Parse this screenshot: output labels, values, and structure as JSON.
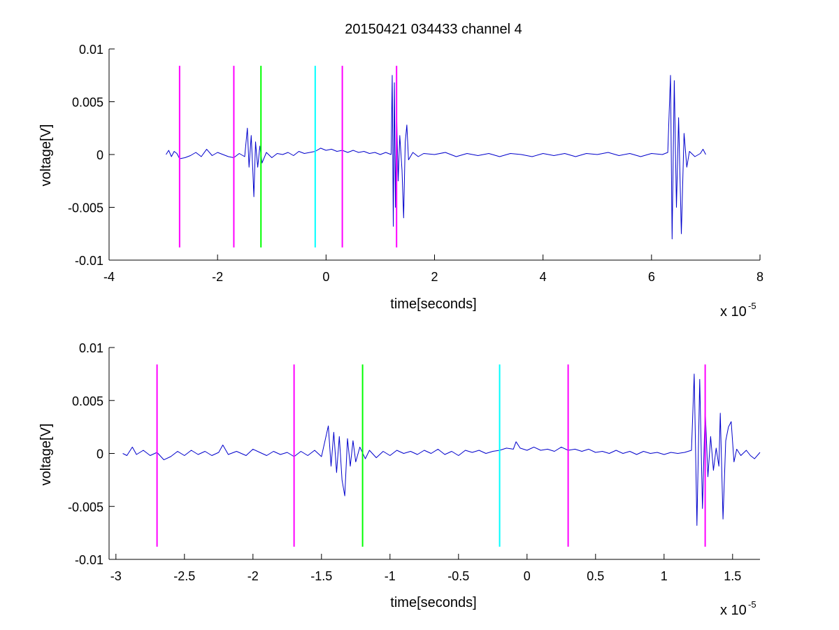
{
  "chart_data": [
    {
      "type": "line",
      "title": "20150421 034433 channel 4",
      "xlabel": "time[seconds]",
      "ylabel": "voltage[V]",
      "x_multiplier_label": "x 10",
      "x_multiplier_exponent": "-5",
      "xlim": [
        -4,
        8
      ],
      "ylim": [
        -0.01,
        0.01
      ],
      "x_ticks": [
        "-4",
        "-2",
        "0",
        "2",
        "4",
        "6",
        "8"
      ],
      "y_ticks": [
        "-0.01",
        "-0.005",
        "0",
        "0.005",
        "0.01"
      ],
      "grid": false,
      "series": [
        {
          "color": "#0000cc",
          "points": [
            [
              -2.95,
              0.0
            ],
            [
              -2.9,
              0.0004
            ],
            [
              -2.85,
              -0.0002
            ],
            [
              -2.8,
              0.0003
            ],
            [
              -2.75,
              0.0001
            ],
            [
              -2.7,
              -0.0004
            ],
            [
              -2.6,
              -0.0003
            ],
            [
              -2.5,
              -0.0001
            ],
            [
              -2.4,
              0.0002
            ],
            [
              -2.3,
              -0.0002
            ],
            [
              -2.2,
              0.0005
            ],
            [
              -2.1,
              -0.0001
            ],
            [
              -2.0,
              0.0002
            ],
            [
              -1.9,
              0.0
            ],
            [
              -1.8,
              -0.0002
            ],
            [
              -1.7,
              -0.0003
            ],
            [
              -1.6,
              0.0001
            ],
            [
              -1.5,
              -0.0002
            ],
            [
              -1.45,
              0.0025
            ],
            [
              -1.42,
              -0.0012
            ],
            [
              -1.38,
              0.0018
            ],
            [
              -1.35,
              -0.0015
            ],
            [
              -1.33,
              -0.004
            ],
            [
              -1.3,
              0.0012
            ],
            [
              -1.26,
              -0.0012
            ],
            [
              -1.22,
              0.0008
            ],
            [
              -1.18,
              -0.0008
            ],
            [
              -1.1,
              0.0002
            ],
            [
              -1.0,
              -0.0003
            ],
            [
              -0.9,
              0.0001
            ],
            [
              -0.8,
              0.0
            ],
            [
              -0.7,
              0.0002
            ],
            [
              -0.6,
              -0.0001
            ],
            [
              -0.5,
              0.0003
            ],
            [
              -0.4,
              0.0001
            ],
            [
              -0.3,
              0.0002
            ],
            [
              -0.2,
              0.0003
            ],
            [
              -0.1,
              0.0006
            ],
            [
              0.0,
              0.0004
            ],
            [
              0.1,
              0.0005
            ],
            [
              0.2,
              0.0003
            ],
            [
              0.3,
              0.0004
            ],
            [
              0.4,
              0.0002
            ],
            [
              0.5,
              0.0004
            ],
            [
              0.6,
              0.0002
            ],
            [
              0.7,
              0.0003
            ],
            [
              0.8,
              0.0001
            ],
            [
              0.9,
              0.0002
            ],
            [
              1.0,
              0.0
            ],
            [
              1.1,
              0.0002
            ],
            [
              1.2,
              0.0
            ],
            [
              1.22,
              0.0075
            ],
            [
              1.24,
              -0.0068
            ],
            [
              1.26,
              0.0068
            ],
            [
              1.28,
              -0.005
            ],
            [
              1.3,
              0.004
            ],
            [
              1.33,
              -0.0025
            ],
            [
              1.36,
              0.0018
            ],
            [
              1.4,
              -0.0015
            ],
            [
              1.43,
              -0.006
            ],
            [
              1.46,
              0.0012
            ],
            [
              1.49,
              0.0028
            ],
            [
              1.52,
              -0.0005
            ],
            [
              1.6,
              0.0002
            ],
            [
              1.7,
              -0.0002
            ],
            [
              1.8,
              0.0001
            ],
            [
              2.0,
              0.0
            ],
            [
              2.2,
              0.0002
            ],
            [
              2.4,
              -0.0002
            ],
            [
              2.6,
              0.0001
            ],
            [
              2.8,
              -0.0001
            ],
            [
              3.0,
              0.0001
            ],
            [
              3.2,
              -0.0002
            ],
            [
              3.4,
              0.0001
            ],
            [
              3.6,
              0.0
            ],
            [
              3.8,
              -0.0002
            ],
            [
              4.0,
              0.0001
            ],
            [
              4.2,
              -0.0001
            ],
            [
              4.4,
              0.0001
            ],
            [
              4.6,
              -0.0002
            ],
            [
              4.8,
              0.0001
            ],
            [
              5.0,
              0.0
            ],
            [
              5.2,
              0.0002
            ],
            [
              5.4,
              -0.0001
            ],
            [
              5.6,
              0.0001
            ],
            [
              5.8,
              -0.0002
            ],
            [
              6.0,
              0.0001
            ],
            [
              6.2,
              0.0
            ],
            [
              6.3,
              0.0002
            ],
            [
              6.35,
              0.0075
            ],
            [
              6.38,
              -0.008
            ],
            [
              6.42,
              0.007
            ],
            [
              6.46,
              -0.005
            ],
            [
              6.5,
              0.0035
            ],
            [
              6.55,
              -0.0075
            ],
            [
              6.6,
              0.002
            ],
            [
              6.65,
              -0.0012
            ],
            [
              6.7,
              0.0003
            ],
            [
              6.8,
              -0.0002
            ],
            [
              6.9,
              0.0001
            ],
            [
              6.95,
              0.0005
            ],
            [
              7.0,
              0.0
            ]
          ]
        }
      ],
      "markers": [
        {
          "x": -2.7,
          "color": "#ff00ff"
        },
        {
          "x": -1.7,
          "color": "#ff00ff"
        },
        {
          "x": -1.2,
          "color": "#00ff00"
        },
        {
          "x": -0.2,
          "color": "#00ffff"
        },
        {
          "x": 0.3,
          "color": "#ff00ff"
        },
        {
          "x": 1.3,
          "color": "#ff00ff"
        }
      ],
      "marker_range": [
        -0.0088,
        0.0084
      ]
    },
    {
      "type": "line",
      "title": "",
      "xlabel": "time[seconds]",
      "ylabel": "voltage[V]",
      "x_multiplier_label": "x 10",
      "x_multiplier_exponent": "-5",
      "xlim": [
        -3.05,
        1.7
      ],
      "ylim": [
        -0.01,
        0.01
      ],
      "x_ticks": [
        "-3",
        "-2.5",
        "-2",
        "-1.5",
        "-1",
        "-0.5",
        "0",
        "0.5",
        "1",
        "1.5"
      ],
      "y_ticks": [
        "-0.01",
        "-0.005",
        "0",
        "0.005",
        "0.01"
      ],
      "grid": false,
      "series": [
        {
          "color": "#0000cc",
          "points": [
            [
              -2.95,
              0.0
            ],
            [
              -2.92,
              -0.0002
            ],
            [
              -2.88,
              0.0006
            ],
            [
              -2.85,
              -0.0001
            ],
            [
              -2.8,
              0.0003
            ],
            [
              -2.75,
              -0.0002
            ],
            [
              -2.7,
              0.0001
            ],
            [
              -2.65,
              -0.0006
            ],
            [
              -2.6,
              -0.0003
            ],
            [
              -2.55,
              0.0002
            ],
            [
              -2.5,
              -0.0002
            ],
            [
              -2.45,
              0.0003
            ],
            [
              -2.4,
              -0.0001
            ],
            [
              -2.35,
              0.0002
            ],
            [
              -2.3,
              -0.0002
            ],
            [
              -2.25,
              0.0001
            ],
            [
              -2.22,
              0.0008
            ],
            [
              -2.18,
              -0.0001
            ],
            [
              -2.12,
              0.0002
            ],
            [
              -2.05,
              -0.0002
            ],
            [
              -2.0,
              0.0004
            ],
            [
              -1.95,
              0.0001
            ],
            [
              -1.9,
              -0.0002
            ],
            [
              -1.85,
              0.0002
            ],
            [
              -1.8,
              -0.0001
            ],
            [
              -1.75,
              0.0001
            ],
            [
              -1.7,
              -0.0003
            ],
            [
              -1.65,
              0.0002
            ],
            [
              -1.6,
              -0.0002
            ],
            [
              -1.55,
              0.0003
            ],
            [
              -1.5,
              -0.0003
            ],
            [
              -1.45,
              0.0026
            ],
            [
              -1.43,
              -0.0012
            ],
            [
              -1.41,
              0.002
            ],
            [
              -1.39,
              -0.0018
            ],
            [
              -1.37,
              0.0016
            ],
            [
              -1.35,
              -0.0025
            ],
            [
              -1.33,
              -0.004
            ],
            [
              -1.31,
              0.0014
            ],
            [
              -1.29,
              -0.0012
            ],
            [
              -1.27,
              0.0012
            ],
            [
              -1.25,
              -0.0008
            ],
            [
              -1.22,
              0.0006
            ],
            [
              -1.18,
              -0.0005
            ],
            [
              -1.15,
              0.0003
            ],
            [
              -1.1,
              -0.0004
            ],
            [
              -1.05,
              0.0002
            ],
            [
              -1.0,
              -0.0002
            ],
            [
              -0.95,
              0.0003
            ],
            [
              -0.9,
              0.0
            ],
            [
              -0.85,
              0.0002
            ],
            [
              -0.8,
              -0.0001
            ],
            [
              -0.75,
              0.0003
            ],
            [
              -0.7,
              0.0
            ],
            [
              -0.65,
              0.0004
            ],
            [
              -0.6,
              -0.0001
            ],
            [
              -0.55,
              0.0002
            ],
            [
              -0.5,
              -0.0002
            ],
            [
              -0.45,
              0.0003
            ],
            [
              -0.4,
              0.0001
            ],
            [
              -0.35,
              0.0003
            ],
            [
              -0.3,
              0.0
            ],
            [
              -0.25,
              0.0002
            ],
            [
              -0.2,
              0.0003
            ],
            [
              -0.15,
              0.0005
            ],
            [
              -0.1,
              0.0004
            ],
            [
              -0.08,
              0.0011
            ],
            [
              -0.05,
              0.0005
            ],
            [
              0.0,
              0.0003
            ],
            [
              0.05,
              0.0006
            ],
            [
              0.1,
              0.0003
            ],
            [
              0.15,
              0.0004
            ],
            [
              0.2,
              0.0002
            ],
            [
              0.25,
              0.0006
            ],
            [
              0.3,
              0.0003
            ],
            [
              0.35,
              0.0004
            ],
            [
              0.4,
              0.0002
            ],
            [
              0.45,
              0.0004
            ],
            [
              0.5,
              0.0001
            ],
            [
              0.55,
              0.0002
            ],
            [
              0.6,
              0.0
            ],
            [
              0.65,
              0.0003
            ],
            [
              0.7,
              0.0
            ],
            [
              0.75,
              0.0002
            ],
            [
              0.8,
              -0.0001
            ],
            [
              0.85,
              0.0002
            ],
            [
              0.9,
              0.0
            ],
            [
              0.95,
              0.0001
            ],
            [
              1.0,
              -0.0001
            ],
            [
              1.05,
              0.0001
            ],
            [
              1.1,
              0.0
            ],
            [
              1.15,
              0.0001
            ],
            [
              1.2,
              0.0003
            ],
            [
              1.22,
              0.0075
            ],
            [
              1.24,
              -0.0068
            ],
            [
              1.26,
              0.007
            ],
            [
              1.28,
              -0.0052
            ],
            [
              1.3,
              0.0042
            ],
            [
              1.32,
              -0.0022
            ],
            [
              1.34,
              0.0016
            ],
            [
              1.36,
              -0.0016
            ],
            [
              1.38,
              0.0005
            ],
            [
              1.4,
              -0.0012
            ],
            [
              1.41,
              0.0038
            ],
            [
              1.43,
              -0.0062
            ],
            [
              1.45,
              0.0012
            ],
            [
              1.47,
              0.0025
            ],
            [
              1.49,
              0.003
            ],
            [
              1.51,
              -0.0008
            ],
            [
              1.53,
              0.0004
            ],
            [
              1.56,
              -0.0002
            ],
            [
              1.6,
              0.0003
            ],
            [
              1.63,
              -0.0002
            ],
            [
              1.66,
              -0.0005
            ],
            [
              1.7,
              0.0001
            ]
          ]
        }
      ],
      "markers": [
        {
          "x": -2.7,
          "color": "#ff00ff"
        },
        {
          "x": -1.7,
          "color": "#ff00ff"
        },
        {
          "x": -1.2,
          "color": "#00ff00"
        },
        {
          "x": -0.2,
          "color": "#00ffff"
        },
        {
          "x": 0.3,
          "color": "#ff00ff"
        },
        {
          "x": 1.3,
          "color": "#ff00ff"
        }
      ],
      "marker_range": [
        -0.0088,
        0.0084
      ]
    }
  ]
}
